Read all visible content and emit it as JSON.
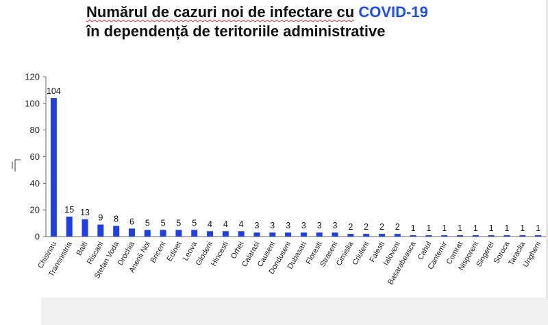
{
  "title": {
    "part1": "Numărul de cazuri noi de infectare cu",
    "accent": "COVID-19",
    "line2": "în dependență de teritoriile administrative"
  },
  "colors": {
    "bar": "#1f3fe6",
    "accent": "#1f4fe0"
  },
  "chart_data": {
    "type": "bar",
    "title": "Numărul de cazuri noi de infectare cu COVID-19 în dependență de teritoriile administrative",
    "xlabel": "",
    "ylabel": "",
    "ylim": [
      0,
      120
    ],
    "yticks": [
      0,
      20,
      40,
      60,
      80,
      100,
      120
    ],
    "grid": false,
    "legend": "none",
    "categories": [
      "Chisinau",
      "Transnistria",
      "Balti",
      "Riscani",
      "Stefan Voda",
      "Drochia",
      "Anenii Noi",
      "Briceni",
      "Edinet",
      "Leova",
      "Glodeni",
      "Hincesti",
      "Orhei",
      "Calarasi",
      "Causeni",
      "Donduseni",
      "Dubasari",
      "Floresti",
      "Straseni",
      "Cimislia",
      "Criuleni",
      "Falesti",
      "Ialoveni",
      "Basarabeasca",
      "Cahul",
      "Cantemir",
      "Comrat",
      "Nisporeni",
      "Singerei",
      "Soroca",
      "Taraclia",
      "Ungheni"
    ],
    "values": [
      104,
      15,
      13,
      9,
      8,
      6,
      5,
      5,
      5,
      5,
      4,
      4,
      4,
      3,
      3,
      3,
      3,
      3,
      3,
      2,
      2,
      2,
      2,
      1,
      1,
      1,
      1,
      1,
      1,
      1,
      1,
      1
    ]
  }
}
